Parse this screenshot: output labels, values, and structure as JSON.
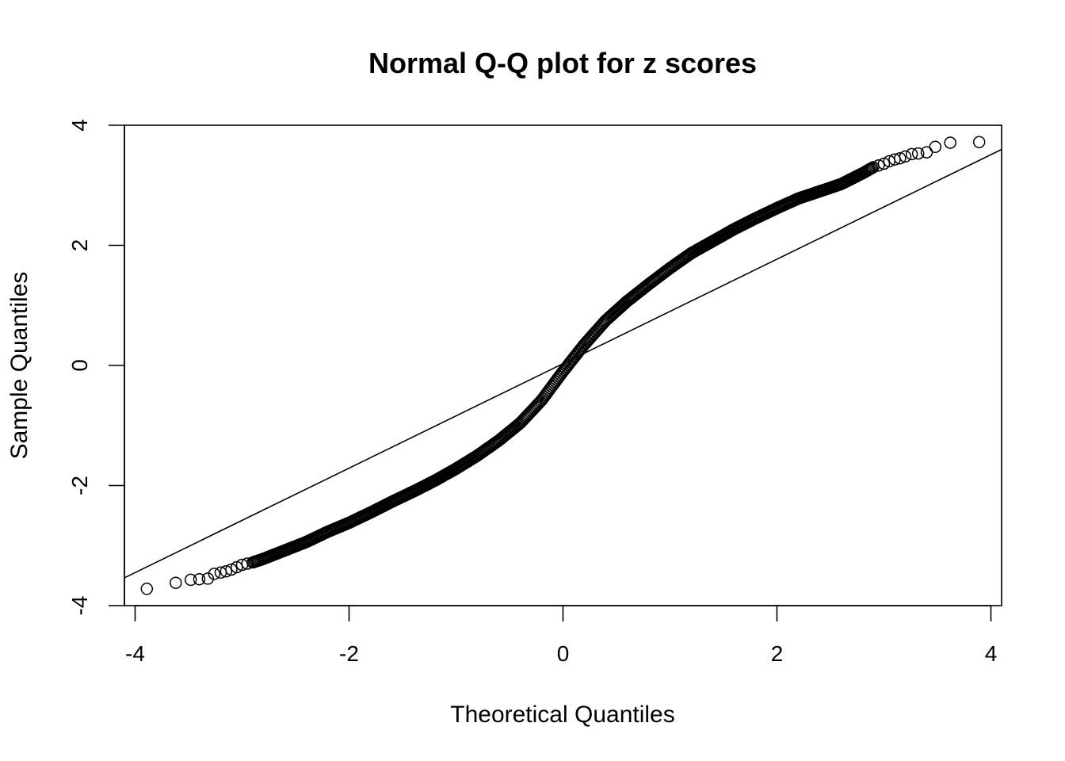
{
  "chart_data": {
    "type": "scatter",
    "title": "Normal Q-Q plot for z scores",
    "xlabel": "Theoretical Quantiles",
    "ylabel": "Sample Quantiles",
    "xlim": [
      -4.1,
      4.1
    ],
    "ylim": [
      -4,
      4
    ],
    "x_ticks": [
      -4,
      -2,
      0,
      2,
      4
    ],
    "y_ticks": [
      -4,
      -2,
      0,
      2,
      4
    ],
    "x_tick_labels": [
      "-4",
      "-2",
      "0",
      "2",
      "4"
    ],
    "y_tick_labels": [
      "-4",
      "-2",
      "0",
      "2",
      "4"
    ],
    "grid": false,
    "legend": "none",
    "marker": "open-circle",
    "reference_line": {
      "slope": 0.87,
      "intercept": 0.03
    },
    "points": [
      [
        -3.89,
        -3.72
      ],
      [
        -3.62,
        -3.62
      ],
      [
        -3.48,
        -3.57
      ],
      [
        -3.4,
        -3.56
      ],
      [
        -3.32,
        -3.55
      ],
      [
        -3.26,
        -3.47
      ],
      [
        -3.2,
        -3.45
      ],
      [
        -3.15,
        -3.43
      ],
      [
        -3.1,
        -3.4
      ],
      [
        -3.05,
        -3.36
      ],
      [
        -3.0,
        -3.32
      ],
      [
        -2.95,
        -3.3
      ],
      [
        -2.9,
        -3.28
      ],
      [
        -2.8,
        -3.22
      ],
      [
        -2.6,
        -3.08
      ],
      [
        -2.4,
        -2.94
      ],
      [
        -2.2,
        -2.77
      ],
      [
        -2.0,
        -2.62
      ],
      [
        -1.8,
        -2.45
      ],
      [
        -1.6,
        -2.27
      ],
      [
        -1.4,
        -2.1
      ],
      [
        -1.2,
        -1.92
      ],
      [
        -1.0,
        -1.72
      ],
      [
        -0.8,
        -1.5
      ],
      [
        -0.6,
        -1.25
      ],
      [
        -0.4,
        -0.96
      ],
      [
        -0.2,
        -0.58
      ],
      [
        0.0,
        -0.1
      ],
      [
        0.2,
        0.35
      ],
      [
        0.4,
        0.75
      ],
      [
        0.6,
        1.07
      ],
      [
        0.8,
        1.35
      ],
      [
        1.0,
        1.62
      ],
      [
        1.2,
        1.87
      ],
      [
        1.4,
        2.07
      ],
      [
        1.6,
        2.27
      ],
      [
        1.8,
        2.45
      ],
      [
        2.0,
        2.62
      ],
      [
        2.2,
        2.78
      ],
      [
        2.4,
        2.9
      ],
      [
        2.6,
        3.02
      ],
      [
        2.8,
        3.2
      ],
      [
        2.9,
        3.3
      ],
      [
        2.95,
        3.33
      ],
      [
        3.0,
        3.36
      ],
      [
        3.05,
        3.4
      ],
      [
        3.1,
        3.43
      ],
      [
        3.15,
        3.45
      ],
      [
        3.2,
        3.48
      ],
      [
        3.26,
        3.52
      ],
      [
        3.32,
        3.53
      ],
      [
        3.4,
        3.55
      ],
      [
        3.48,
        3.64
      ],
      [
        3.62,
        3.71
      ],
      [
        3.89,
        3.72
      ]
    ]
  }
}
